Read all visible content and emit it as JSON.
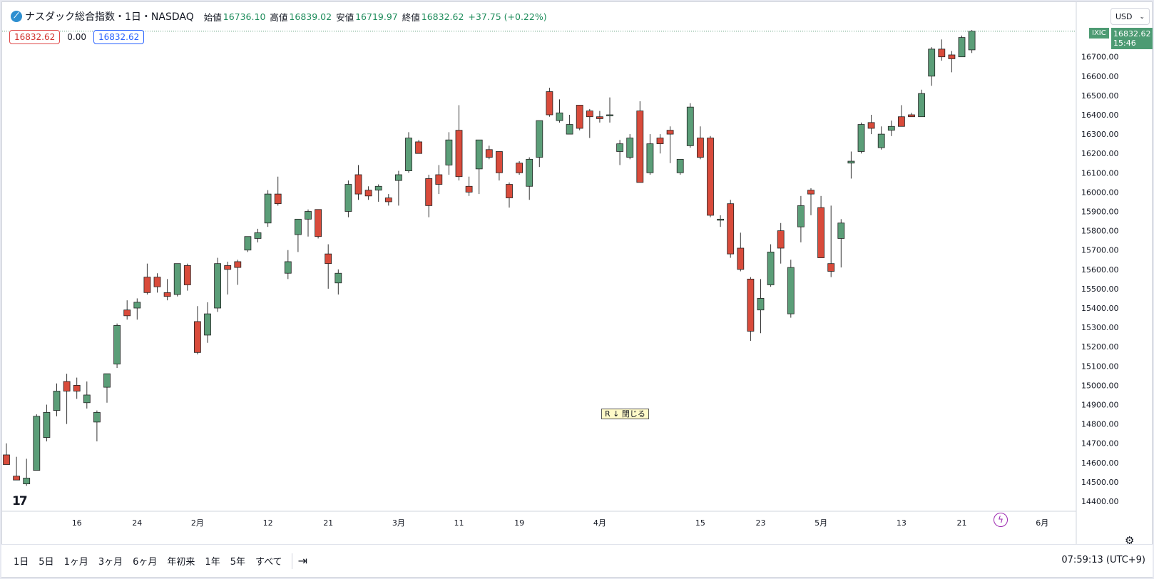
{
  "header": {
    "title": "ナスダック総合指数・1日・NASDAQ",
    "open_label": "始値",
    "open": "16736.10",
    "high_label": "高値",
    "high": "16839.02",
    "low_label": "安値",
    "low": "16719.97",
    "close_label": "終値",
    "close": "16832.62",
    "change": "+37.75 (+0.22%)"
  },
  "price_row": {
    "sell": "16832.62",
    "spread": "0.00",
    "buy": "16832.62"
  },
  "currency": "USD",
  "last_price": {
    "symbol": "IXIC",
    "price": "16832.62",
    "countdown": "15:46"
  },
  "annotation": "R ↓ 閉じる",
  "logo_text": "17",
  "bolt_icon": "lightning-icon",
  "bottom": {
    "ranges": [
      "1日",
      "5日",
      "1ヶ月",
      "3ヶ月",
      "6ヶ月",
      "年初来",
      "1年",
      "5年",
      "すべて"
    ],
    "time": "07:59:13 (UTC+9)"
  },
  "colors": {
    "up": "#5b9e78",
    "down": "#d94b3b",
    "outline": "#222222"
  },
  "chart_data": {
    "type": "candlestick",
    "y_ticks": [
      14400,
      14500,
      14600,
      14700,
      14800,
      14900,
      15000,
      15100,
      15200,
      15300,
      15400,
      15500,
      15600,
      15700,
      15800,
      15900,
      16000,
      16100,
      16200,
      16300,
      16400,
      16500,
      16600,
      16700
    ],
    "x_ticks": [
      {
        "label": "16",
        "index": 7
      },
      {
        "label": "24",
        "index": 13
      },
      {
        "label": "2月",
        "index": 19
      },
      {
        "label": "12",
        "index": 26
      },
      {
        "label": "21",
        "index": 32
      },
      {
        "label": "3月",
        "index": 39
      },
      {
        "label": "11",
        "index": 45
      },
      {
        "label": "19",
        "index": 51
      },
      {
        "label": "4月",
        "index": 59
      },
      {
        "label": "15",
        "index": 69
      },
      {
        "label": "23",
        "index": 75
      },
      {
        "label": "5月",
        "index": 81
      },
      {
        "label": "13",
        "index": 89
      },
      {
        "label": "21",
        "index": 95
      },
      {
        "label": "6月",
        "index": 103
      }
    ],
    "candles": [
      {
        "o": 14640,
        "h": 14700,
        "l": 14590,
        "c": 14590
      },
      {
        "o": 14530,
        "h": 14630,
        "l": 14510,
        "c": 14510
      },
      {
        "o": 14490,
        "h": 14620,
        "l": 14480,
        "c": 14520
      },
      {
        "o": 14560,
        "h": 14850,
        "l": 14560,
        "c": 14840
      },
      {
        "o": 14730,
        "h": 14900,
        "l": 14710,
        "c": 14860
      },
      {
        "o": 14870,
        "h": 15010,
        "l": 14840,
        "c": 14970
      },
      {
        "o": 15020,
        "h": 15060,
        "l": 14800,
        "c": 14970
      },
      {
        "o": 15000,
        "h": 15040,
        "l": 14930,
        "c": 14970
      },
      {
        "o": 14910,
        "h": 15020,
        "l": 14880,
        "c": 14950
      },
      {
        "o": 14810,
        "h": 14870,
        "l": 14710,
        "c": 14860
      },
      {
        "o": 14990,
        "h": 15060,
        "l": 14910,
        "c": 15060
      },
      {
        "o": 15110,
        "h": 15320,
        "l": 15090,
        "c": 15310
      },
      {
        "o": 15390,
        "h": 15440,
        "l": 15340,
        "c": 15360
      },
      {
        "o": 15400,
        "h": 15450,
        "l": 15340,
        "c": 15430
      },
      {
        "o": 15560,
        "h": 15630,
        "l": 15470,
        "c": 15480
      },
      {
        "o": 15560,
        "h": 15580,
        "l": 15480,
        "c": 15510
      },
      {
        "o": 15480,
        "h": 15550,
        "l": 15440,
        "c": 15460
      },
      {
        "o": 15470,
        "h": 15630,
        "l": 15460,
        "c": 15630
      },
      {
        "o": 15620,
        "h": 15630,
        "l": 15490,
        "c": 15520
      },
      {
        "o": 15330,
        "h": 15410,
        "l": 15160,
        "c": 15170
      },
      {
        "o": 15260,
        "h": 15430,
        "l": 15220,
        "c": 15370
      },
      {
        "o": 15400,
        "h": 15660,
        "l": 15380,
        "c": 15630
      },
      {
        "o": 15620,
        "h": 15640,
        "l": 15470,
        "c": 15600
      },
      {
        "o": 15640,
        "h": 15650,
        "l": 15520,
        "c": 15610
      },
      {
        "o": 15700,
        "h": 15770,
        "l": 15690,
        "c": 15770
      },
      {
        "o": 15760,
        "h": 15810,
        "l": 15740,
        "c": 15790
      },
      {
        "o": 15840,
        "h": 16010,
        "l": 15820,
        "c": 15990
      },
      {
        "o": 15990,
        "h": 16080,
        "l": 15930,
        "c": 15940
      },
      {
        "o": 15580,
        "h": 15700,
        "l": 15550,
        "c": 15640
      },
      {
        "o": 15780,
        "h": 15860,
        "l": 15690,
        "c": 15860
      },
      {
        "o": 15860,
        "h": 15910,
        "l": 15770,
        "c": 15900
      },
      {
        "o": 15910,
        "h": 15910,
        "l": 15760,
        "c": 15770
      },
      {
        "o": 15680,
        "h": 15730,
        "l": 15500,
        "c": 15630
      },
      {
        "o": 15530,
        "h": 15600,
        "l": 15470,
        "c": 15580
      },
      {
        "o": 15900,
        "h": 16060,
        "l": 15870,
        "c": 16040
      },
      {
        "o": 16090,
        "h": 16140,
        "l": 15960,
        "c": 15990
      },
      {
        "o": 16010,
        "h": 16030,
        "l": 15960,
        "c": 15980
      },
      {
        "o": 16010,
        "h": 16040,
        "l": 15950,
        "c": 16030
      },
      {
        "o": 15970,
        "h": 15990,
        "l": 15930,
        "c": 15950
      },
      {
        "o": 16060,
        "h": 16110,
        "l": 15930,
        "c": 16090
      },
      {
        "o": 16110,
        "h": 16310,
        "l": 16100,
        "c": 16280
      },
      {
        "o": 16260,
        "h": 16270,
        "l": 16200,
        "c": 16200
      },
      {
        "o": 16070,
        "h": 16090,
        "l": 15870,
        "c": 15930
      },
      {
        "o": 16090,
        "h": 16140,
        "l": 15990,
        "c": 16040
      },
      {
        "o": 16140,
        "h": 16310,
        "l": 16090,
        "c": 16270
      },
      {
        "o": 16320,
        "h": 16450,
        "l": 16060,
        "c": 16080
      },
      {
        "o": 16030,
        "h": 16080,
        "l": 15980,
        "c": 16000
      },
      {
        "o": 16120,
        "h": 16270,
        "l": 15990,
        "c": 16270
      },
      {
        "o": 16220,
        "h": 16240,
        "l": 16170,
        "c": 16180
      },
      {
        "o": 16210,
        "h": 16210,
        "l": 16060,
        "c": 16100
      },
      {
        "o": 16040,
        "h": 16050,
        "l": 15920,
        "c": 15970
      },
      {
        "o": 16150,
        "h": 16160,
        "l": 16090,
        "c": 16100
      },
      {
        "o": 16030,
        "h": 16180,
        "l": 15960,
        "c": 16170
      },
      {
        "o": 16180,
        "h": 16370,
        "l": 16130,
        "c": 16370
      },
      {
        "o": 16520,
        "h": 16540,
        "l": 16390,
        "c": 16400
      },
      {
        "o": 16370,
        "h": 16480,
        "l": 16360,
        "c": 16410
      },
      {
        "o": 16300,
        "h": 16400,
        "l": 16300,
        "c": 16350
      },
      {
        "o": 16450,
        "h": 16450,
        "l": 16320,
        "c": 16330
      },
      {
        "o": 16420,
        "h": 16430,
        "l": 16280,
        "c": 16390
      },
      {
        "o": 16390,
        "h": 16420,
        "l": 16360,
        "c": 16380
      },
      {
        "o": 16400,
        "h": 16490,
        "l": 16360,
        "c": 16400
      },
      {
        "o": 16210,
        "h": 16270,
        "l": 16140,
        "c": 16250
      },
      {
        "o": 16180,
        "h": 16300,
        "l": 16170,
        "c": 16280
      },
      {
        "o": 16420,
        "h": 16470,
        "l": 16050,
        "c": 16050
      },
      {
        "o": 16100,
        "h": 16300,
        "l": 16090,
        "c": 16250
      },
      {
        "o": 16280,
        "h": 16300,
        "l": 16200,
        "c": 16250
      },
      {
        "o": 16320,
        "h": 16340,
        "l": 16150,
        "c": 16300
      },
      {
        "o": 16100,
        "h": 16170,
        "l": 16090,
        "c": 16170
      },
      {
        "o": 16240,
        "h": 16460,
        "l": 16230,
        "c": 16440
      },
      {
        "o": 16280,
        "h": 16340,
        "l": 16170,
        "c": 16180
      },
      {
        "o": 16280,
        "h": 16290,
        "l": 15870,
        "c": 15880
      },
      {
        "o": 15860,
        "h": 15880,
        "l": 15820,
        "c": 15860
      },
      {
        "o": 15940,
        "h": 15960,
        "l": 15660,
        "c": 15680
      },
      {
        "o": 15710,
        "h": 15790,
        "l": 15590,
        "c": 15600
      },
      {
        "o": 15550,
        "h": 15560,
        "l": 15230,
        "c": 15280
      },
      {
        "o": 15390,
        "h": 15550,
        "l": 15270,
        "c": 15450
      },
      {
        "o": 15520,
        "h": 15730,
        "l": 15510,
        "c": 15690
      },
      {
        "o": 15800,
        "h": 15840,
        "l": 15630,
        "c": 15710
      },
      {
        "o": 15370,
        "h": 15650,
        "l": 15350,
        "c": 15610
      },
      {
        "o": 15820,
        "h": 15980,
        "l": 15740,
        "c": 15930
      },
      {
        "o": 16010,
        "h": 16020,
        "l": 15880,
        "c": 15990
      },
      {
        "o": 15920,
        "h": 15980,
        "l": 15660,
        "c": 15660
      },
      {
        "o": 15630,
        "h": 15930,
        "l": 15560,
        "c": 15590
      },
      {
        "o": 15760,
        "h": 15860,
        "l": 15610,
        "c": 15840
      },
      {
        "o": 16150,
        "h": 16210,
        "l": 16070,
        "c": 16160
      },
      {
        "o": 16210,
        "h": 16360,
        "l": 16200,
        "c": 16350
      },
      {
        "o": 16360,
        "h": 16400,
        "l": 16300,
        "c": 16330
      },
      {
        "o": 16230,
        "h": 16340,
        "l": 16220,
        "c": 16300
      },
      {
        "o": 16320,
        "h": 16370,
        "l": 16290,
        "c": 16340
      },
      {
        "o": 16390,
        "h": 16450,
        "l": 16340,
        "c": 16340
      },
      {
        "o": 16400,
        "h": 16410,
        "l": 16390,
        "c": 16390
      },
      {
        "o": 16390,
        "h": 16530,
        "l": 16390,
        "c": 16510
      },
      {
        "o": 16600,
        "h": 16750,
        "l": 16550,
        "c": 16740
      },
      {
        "o": 16740,
        "h": 16790,
        "l": 16680,
        "c": 16700
      },
      {
        "o": 16710,
        "h": 16730,
        "l": 16620,
        "c": 16690
      },
      {
        "o": 16700,
        "h": 16810,
        "l": 16700,
        "c": 16800
      },
      {
        "o": 16736.1,
        "h": 16839.02,
        "l": 16719.97,
        "c": 16832.62
      }
    ]
  }
}
